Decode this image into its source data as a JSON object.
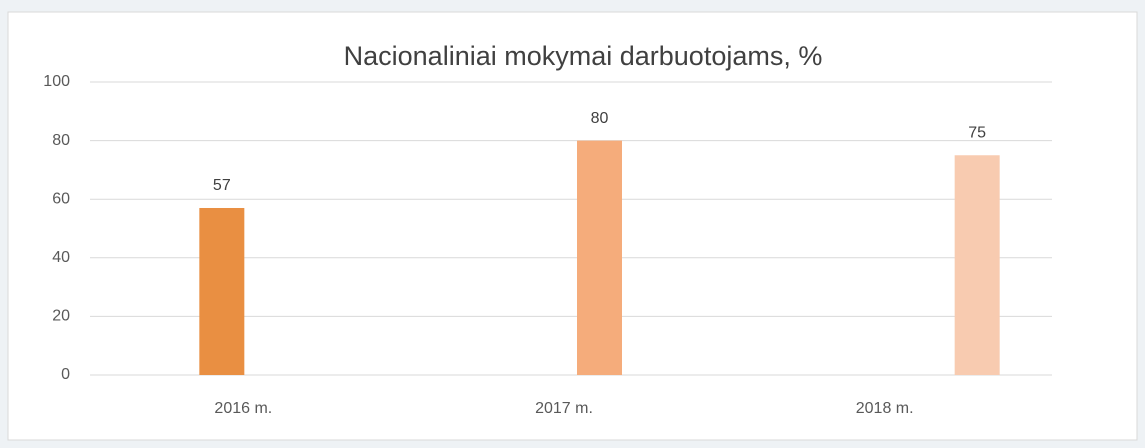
{
  "chart_data": {
    "type": "bar",
    "title": "Nacionaliniai mokymai darbuotojams, %",
    "categories": [
      "2016 m.",
      "2017 m.",
      "2018 m."
    ],
    "values": [
      57,
      80,
      75
    ],
    "colors": [
      "#e98f42",
      "#f5ac7b",
      "#f8cbb0"
    ],
    "ylim": [
      0,
      100
    ],
    "yticks": [
      0,
      20,
      40,
      60,
      80,
      100
    ],
    "grid": true
  }
}
